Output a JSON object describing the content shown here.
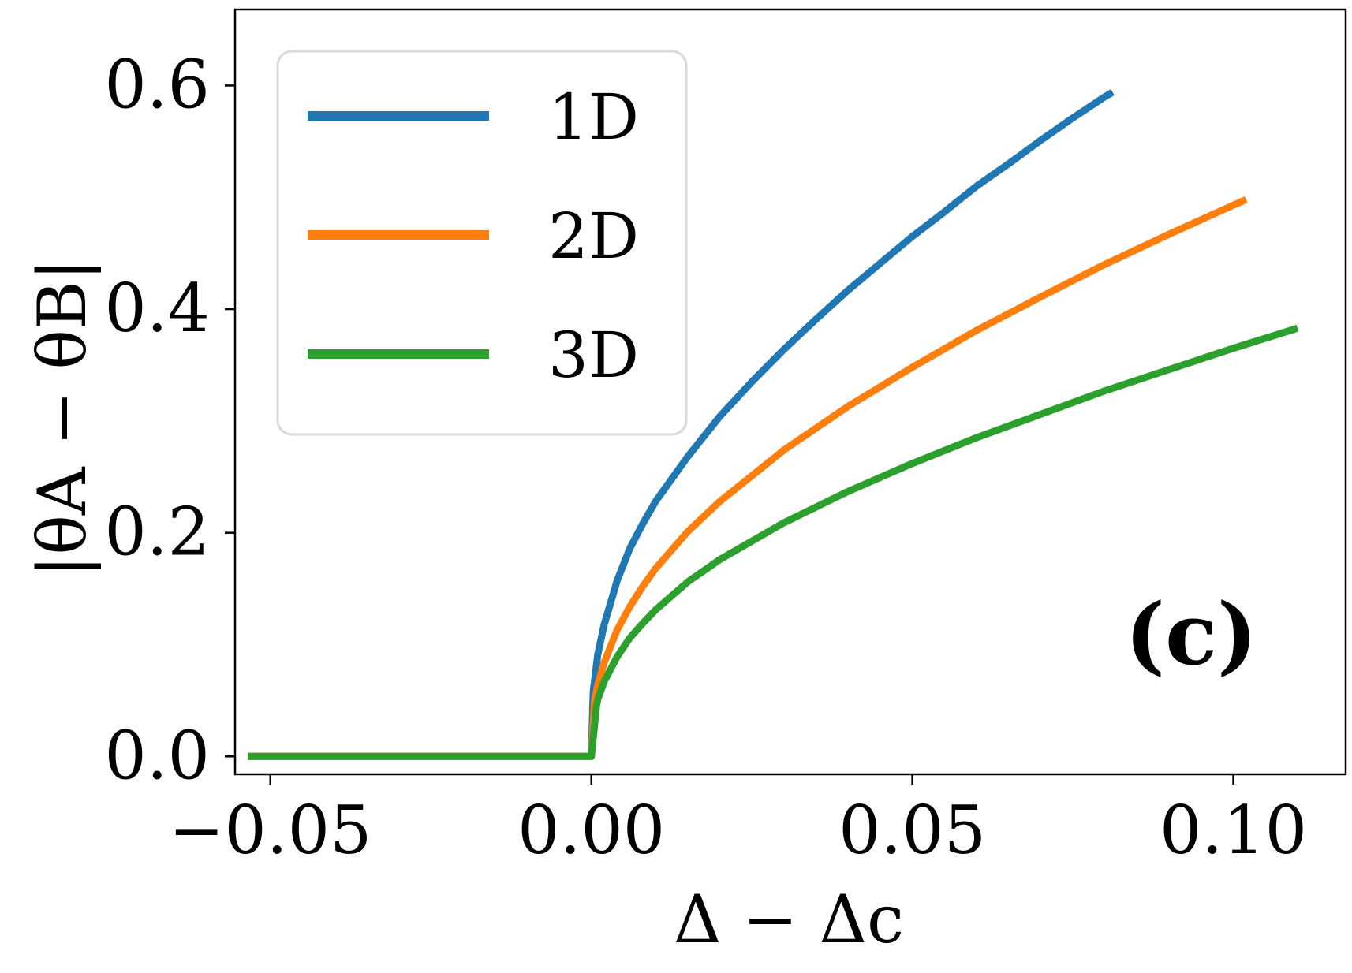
{
  "chart_data": {
    "type": "line",
    "xlabel": "Δ − Δc",
    "ylabel": "|θA − θB|",
    "xlim": [
      -0.0555,
      0.1175
    ],
    "ylim": [
      -0.016,
      0.668
    ],
    "xticks": [
      {
        "value": -0.05,
        "label": "−0.05"
      },
      {
        "value": 0.0,
        "label": "0.00"
      },
      {
        "value": 0.05,
        "label": "0.05"
      },
      {
        "value": 0.1,
        "label": "0.10"
      }
    ],
    "yticks": [
      {
        "value": 0.0,
        "label": "0.0"
      },
      {
        "value": 0.2,
        "label": "0.2"
      },
      {
        "value": 0.4,
        "label": "0.4"
      },
      {
        "value": 0.6,
        "label": "0.6"
      }
    ],
    "grid": false,
    "legend_position": "top-left",
    "annotation": "(c)",
    "series": [
      {
        "name": "1D",
        "color": "#1f77b4",
        "points": [
          [
            -0.0535,
            0.0
          ],
          [
            -0.04,
            0.0
          ],
          [
            -0.03,
            0.0
          ],
          [
            -0.02,
            0.0
          ],
          [
            -0.01,
            0.0
          ],
          [
            -0.002,
            0.0
          ],
          [
            0.0,
            0.0
          ],
          [
            0.0003,
            0.058
          ],
          [
            0.001,
            0.091
          ],
          [
            0.002,
            0.118
          ],
          [
            0.004,
            0.157
          ],
          [
            0.006,
            0.186
          ],
          [
            0.008,
            0.208
          ],
          [
            0.01,
            0.228
          ],
          [
            0.015,
            0.268
          ],
          [
            0.02,
            0.304
          ],
          [
            0.025,
            0.335
          ],
          [
            0.03,
            0.364
          ],
          [
            0.035,
            0.391
          ],
          [
            0.04,
            0.417
          ],
          [
            0.045,
            0.441
          ],
          [
            0.05,
            0.465
          ],
          [
            0.055,
            0.487
          ],
          [
            0.06,
            0.51
          ],
          [
            0.065,
            0.53
          ],
          [
            0.07,
            0.551
          ],
          [
            0.075,
            0.571
          ],
          [
            0.08,
            0.59
          ],
          [
            0.0812,
            0.594
          ]
        ]
      },
      {
        "name": "2D",
        "color": "#ff7f0e",
        "points": [
          [
            -0.0535,
            0.0
          ],
          [
            -0.04,
            0.0
          ],
          [
            -0.03,
            0.0
          ],
          [
            -0.02,
            0.0
          ],
          [
            -0.01,
            0.0
          ],
          [
            -0.002,
            0.0
          ],
          [
            0.0,
            0.0
          ],
          [
            0.0005,
            0.05
          ],
          [
            0.001,
            0.064
          ],
          [
            0.002,
            0.084
          ],
          [
            0.004,
            0.113
          ],
          [
            0.006,
            0.134
          ],
          [
            0.008,
            0.152
          ],
          [
            0.01,
            0.168
          ],
          [
            0.015,
            0.201
          ],
          [
            0.02,
            0.228
          ],
          [
            0.03,
            0.274
          ],
          [
            0.04,
            0.313
          ],
          [
            0.05,
            0.348
          ],
          [
            0.06,
            0.381
          ],
          [
            0.07,
            0.411
          ],
          [
            0.08,
            0.44
          ],
          [
            0.09,
            0.467
          ],
          [
            0.1,
            0.493
          ],
          [
            0.102,
            0.498
          ]
        ]
      },
      {
        "name": "3D",
        "color": "#2ca02c",
        "points": [
          [
            -0.0535,
            0.0
          ],
          [
            -0.04,
            0.0
          ],
          [
            -0.03,
            0.0
          ],
          [
            -0.02,
            0.0
          ],
          [
            -0.01,
            0.0
          ],
          [
            -0.002,
            0.0
          ],
          [
            0.0,
            0.0
          ],
          [
            0.0008,
            0.045
          ],
          [
            0.001,
            0.051
          ],
          [
            0.002,
            0.067
          ],
          [
            0.004,
            0.089
          ],
          [
            0.006,
            0.106
          ],
          [
            0.008,
            0.119
          ],
          [
            0.01,
            0.131
          ],
          [
            0.015,
            0.156
          ],
          [
            0.02,
            0.176
          ],
          [
            0.03,
            0.209
          ],
          [
            0.04,
            0.237
          ],
          [
            0.05,
            0.262
          ],
          [
            0.06,
            0.285
          ],
          [
            0.07,
            0.306
          ],
          [
            0.08,
            0.327
          ],
          [
            0.09,
            0.346
          ],
          [
            0.1,
            0.365
          ],
          [
            0.11,
            0.383
          ]
        ]
      }
    ]
  }
}
